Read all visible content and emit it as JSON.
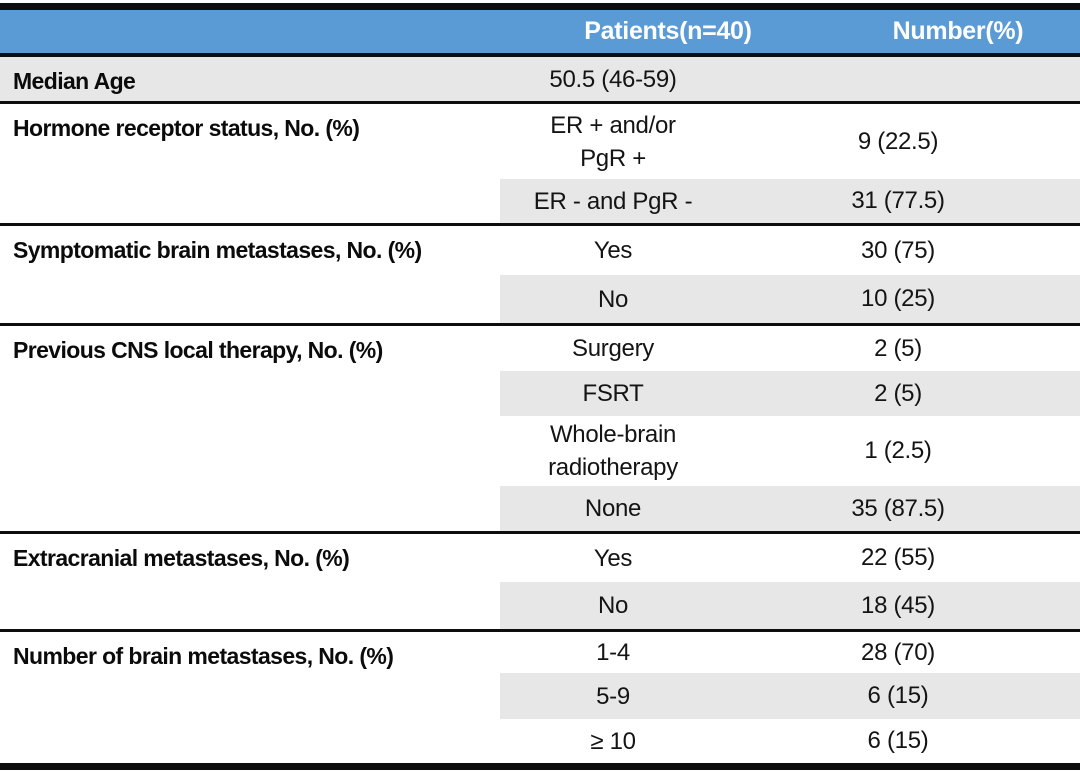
{
  "colors": {
    "header_bg": "#5B9BD5",
    "header_text": "#FFFFFF",
    "row_shade": "#E7E7E7",
    "rule": "#0D0D0D"
  },
  "header": {
    "patients": "Patients(n=40)",
    "number": "Number(%)"
  },
  "sections": [
    {
      "label": "Median Age",
      "rows": [
        {
          "category_lines": [
            "50.5 (46-59)"
          ],
          "value": ""
        }
      ]
    },
    {
      "label": "Hormone receptor status, No. (%)",
      "rows": [
        {
          "category_lines": [
            "ER + and/or",
            "PgR +"
          ],
          "value": "9 (22.5)"
        },
        {
          "category_lines": [
            "ER - and PgR -"
          ],
          "value": "31 (77.5)"
        }
      ]
    },
    {
      "label": "Symptomatic brain metastases, No. (%)",
      "rows": [
        {
          "category_lines": [
            "Yes"
          ],
          "value": "30 (75)"
        },
        {
          "category_lines": [
            "No"
          ],
          "value": "10 (25)"
        }
      ]
    },
    {
      "label": "Previous CNS local therapy, No. (%)",
      "rows": [
        {
          "category_lines": [
            "Surgery"
          ],
          "value": "2 (5)"
        },
        {
          "category_lines": [
            "FSRT"
          ],
          "value": "2 (5)"
        },
        {
          "category_lines": [
            "Whole-brain",
            "radiotherapy"
          ],
          "value": "1 (2.5)"
        },
        {
          "category_lines": [
            "None"
          ],
          "value": "35 (87.5)"
        }
      ]
    },
    {
      "label": "Extracranial metastases, No. (%)",
      "rows": [
        {
          "category_lines": [
            "Yes"
          ],
          "value": "22 (55)"
        },
        {
          "category_lines": [
            "No"
          ],
          "value": "18 (45)"
        }
      ]
    },
    {
      "label": "Number of brain metastases, No. (%)",
      "rows": [
        {
          "category_lines": [
            "1-4"
          ],
          "value": "28 (70)"
        },
        {
          "category_lines": [
            "5-9"
          ],
          "value": "6 (15)"
        },
        {
          "category_lines": [
            "≥ 10"
          ],
          "value": "6 (15)"
        }
      ]
    }
  ]
}
